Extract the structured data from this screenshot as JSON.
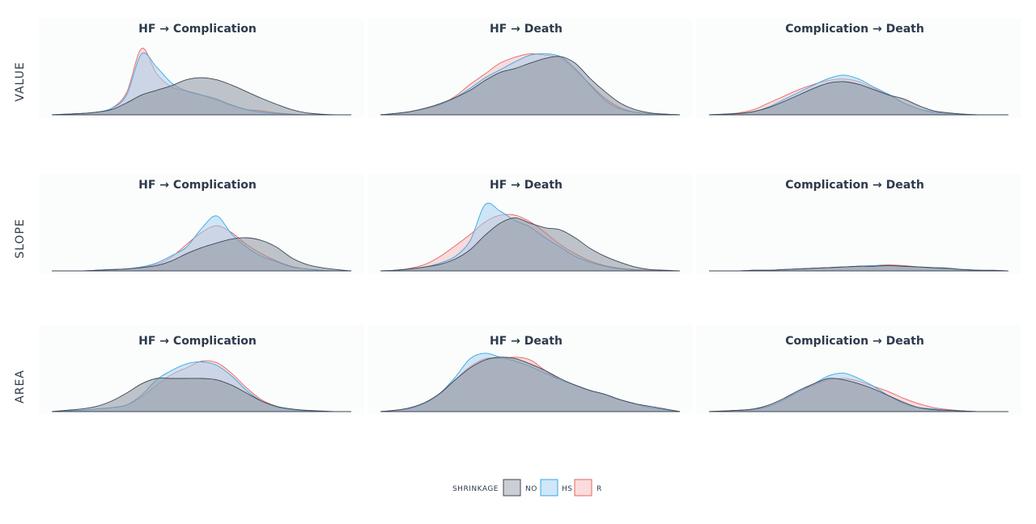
{
  "chart_data": {
    "type": "area",
    "subtype": "density-facet-grid",
    "rows": [
      "VALUE",
      "SLOPE",
      "AREA"
    ],
    "columns": [
      "HF → Complication",
      "HF → Death",
      "Complication → Death"
    ],
    "legend": {
      "title": "SHRINKAGE",
      "placement": "bottom-center",
      "entries": [
        {
          "key": "NO",
          "label": "NO",
          "fill": "#8c939f",
          "stroke": "#3d4656"
        },
        {
          "key": "HS",
          "label": "HS",
          "fill": "#9fd0f2",
          "stroke": "#3aa7e0"
        },
        {
          "key": "R",
          "label": "R",
          "fill": "#f7b9b9",
          "stroke": "#e46666"
        }
      ]
    },
    "grid": false,
    "x_axis_labels_shown": false,
    "y_axis_labels_shown": false,
    "xlim": [
      0,
      1
    ],
    "ylim": [
      0,
      1
    ],
    "x": [
      0,
      0.05,
      0.1,
      0.15,
      0.2,
      0.25,
      0.3,
      0.35,
      0.4,
      0.45,
      0.5,
      0.55,
      0.6,
      0.65,
      0.7,
      0.75,
      0.8,
      0.85,
      0.9,
      0.95,
      1
    ],
    "panels": [
      {
        "row": "VALUE",
        "column": "HF → Complication",
        "series": [
          {
            "name": "NO",
            "values": [
              0,
              0.01,
              0.02,
              0.04,
              0.08,
              0.18,
              0.3,
              0.37,
              0.44,
              0.53,
              0.56,
              0.53,
              0.45,
              0.35,
              0.25,
              0.16,
              0.08,
              0.03,
              0.01,
              0,
              0
            ]
          },
          {
            "name": "HS",
            "values": [
              0,
              0.01,
              0.02,
              0.04,
              0.1,
              0.3,
              0.92,
              0.72,
              0.48,
              0.36,
              0.3,
              0.24,
              0.15,
              0.08,
              0.04,
              0.02,
              0.01,
              0,
              0,
              0,
              0
            ]
          },
          {
            "name": "R",
            "values": [
              0,
              0.01,
              0.02,
              0.04,
              0.1,
              0.34,
              1.0,
              0.62,
              0.42,
              0.36,
              0.3,
              0.22,
              0.14,
              0.08,
              0.06,
              0.03,
              0.01,
              0,
              0,
              0,
              0
            ]
          }
        ]
      },
      {
        "row": "VALUE",
        "column": "HF → Death",
        "series": [
          {
            "name": "NO",
            "values": [
              0,
              0.02,
              0.05,
              0.1,
              0.17,
              0.26,
              0.37,
              0.52,
              0.64,
              0.7,
              0.78,
              0.85,
              0.88,
              0.78,
              0.55,
              0.35,
              0.18,
              0.08,
              0.03,
              0.01,
              0
            ]
          },
          {
            "name": "HS",
            "values": [
              0,
              0.02,
              0.05,
              0.1,
              0.16,
              0.26,
              0.4,
              0.56,
              0.68,
              0.8,
              0.9,
              0.92,
              0.88,
              0.7,
              0.45,
              0.22,
              0.09,
              0.04,
              0.02,
              0.01,
              0
            ]
          },
          {
            "name": "R",
            "values": [
              0,
              0.02,
              0.05,
              0.09,
              0.15,
              0.28,
              0.46,
              0.62,
              0.78,
              0.87,
              0.92,
              0.9,
              0.86,
              0.68,
              0.46,
              0.25,
              0.11,
              0.04,
              0.02,
              0.01,
              0
            ]
          }
        ]
      },
      {
        "row": "VALUE",
        "column": "Complication → Death",
        "series": [
          {
            "name": "NO",
            "values": [
              0,
              0.01,
              0.02,
              0.05,
              0.11,
              0.2,
              0.3,
              0.4,
              0.48,
              0.5,
              0.46,
              0.38,
              0.3,
              0.24,
              0.14,
              0.06,
              0.03,
              0.01,
              0,
              0,
              0
            ]
          },
          {
            "name": "HS",
            "values": [
              0,
              0.01,
              0.02,
              0.05,
              0.12,
              0.23,
              0.34,
              0.45,
              0.55,
              0.6,
              0.54,
              0.42,
              0.31,
              0.18,
              0.09,
              0.04,
              0.02,
              0.01,
              0,
              0,
              0
            ]
          },
          {
            "name": "R",
            "values": [
              0,
              0.01,
              0.03,
              0.08,
              0.18,
              0.28,
              0.38,
              0.46,
              0.52,
              0.54,
              0.5,
              0.4,
              0.3,
              0.18,
              0.09,
              0.04,
              0.02,
              0.01,
              0,
              0,
              0
            ]
          }
        ]
      },
      {
        "row": "SLOPE",
        "column": "HF → Complication",
        "series": [
          {
            "name": "NO",
            "values": [
              0,
              0,
              0,
              0.01,
              0.02,
              0.03,
              0.05,
              0.08,
              0.15,
              0.26,
              0.35,
              0.42,
              0.48,
              0.5,
              0.46,
              0.36,
              0.2,
              0.1,
              0.05,
              0.02,
              0
            ]
          },
          {
            "name": "HS",
            "values": [
              0,
              0,
              0,
              0.01,
              0.02,
              0.03,
              0.06,
              0.12,
              0.23,
              0.36,
              0.64,
              0.83,
              0.56,
              0.36,
              0.22,
              0.14,
              0.06,
              0.03,
              0.01,
              0,
              0
            ]
          },
          {
            "name": "R",
            "values": [
              0,
              0,
              0,
              0.01,
              0.02,
              0.03,
              0.06,
              0.1,
              0.21,
              0.4,
              0.58,
              0.68,
              0.58,
              0.4,
              0.26,
              0.15,
              0.07,
              0.03,
              0.01,
              0,
              0
            ]
          }
        ]
      },
      {
        "row": "SLOPE",
        "column": "HF → Death",
        "series": [
          {
            "name": "NO",
            "values": [
              0,
              0.01,
              0.03,
              0.06,
              0.1,
              0.18,
              0.32,
              0.54,
              0.72,
              0.8,
              0.72,
              0.65,
              0.62,
              0.5,
              0.34,
              0.22,
              0.13,
              0.06,
              0.02,
              0.01,
              0
            ]
          },
          {
            "name": "HS",
            "values": [
              0,
              0.01,
              0.03,
              0.06,
              0.12,
              0.22,
              0.46,
              1.0,
              0.9,
              0.76,
              0.66,
              0.5,
              0.36,
              0.22,
              0.13,
              0.07,
              0.03,
              0.01,
              0,
              0,
              0
            ]
          },
          {
            "name": "R",
            "values": [
              0,
              0.01,
              0.04,
              0.1,
              0.22,
              0.38,
              0.55,
              0.74,
              0.84,
              0.84,
              0.74,
              0.58,
              0.4,
              0.26,
              0.15,
              0.08,
              0.04,
              0.02,
              0.01,
              0,
              0
            ]
          }
        ]
      },
      {
        "row": "SLOPE",
        "column": "Complication → Death",
        "series": [
          {
            "name": "NO",
            "values": [
              0,
              0,
              0,
              0.01,
              0.01,
              0.02,
              0.03,
              0.04,
              0.05,
              0.06,
              0.07,
              0.07,
              0.08,
              0.07,
              0.06,
              0.05,
              0.04,
              0.02,
              0.01,
              0.01,
              0
            ]
          },
          {
            "name": "HS",
            "values": [
              0,
              0,
              0,
              0.01,
              0.01,
              0.02,
              0.03,
              0.04,
              0.05,
              0.06,
              0.07,
              0.08,
              0.08,
              0.07,
              0.06,
              0.04,
              0.03,
              0.02,
              0.01,
              0,
              0
            ]
          },
          {
            "name": "R",
            "values": [
              0,
              0,
              0,
              0.01,
              0.01,
              0.02,
              0.03,
              0.04,
              0.05,
              0.06,
              0.07,
              0.08,
              0.09,
              0.08,
              0.06,
              0.04,
              0.03,
              0.02,
              0.01,
              0,
              0
            ]
          }
        ]
      },
      {
        "row": "AREA",
        "column": "HF → Complication",
        "series": [
          {
            "name": "NO",
            "values": [
              0,
              0.02,
              0.04,
              0.08,
              0.16,
              0.28,
              0.42,
              0.5,
              0.5,
              0.5,
              0.5,
              0.48,
              0.4,
              0.28,
              0.16,
              0.08,
              0.04,
              0.02,
              0.01,
              0,
              0
            ]
          },
          {
            "name": "HS",
            "values": [
              0,
              0.01,
              0.02,
              0.04,
              0.06,
              0.1,
              0.25,
              0.48,
              0.62,
              0.72,
              0.75,
              0.7,
              0.54,
              0.32,
              0.16,
              0.07,
              0.03,
              0.01,
              0,
              0,
              0
            ]
          },
          {
            "name": "R",
            "values": [
              0,
              0.01,
              0.02,
              0.04,
              0.06,
              0.1,
              0.22,
              0.4,
              0.56,
              0.66,
              0.76,
              0.74,
              0.58,
              0.36,
              0.18,
              0.08,
              0.03,
              0.01,
              0,
              0,
              0
            ]
          }
        ]
      },
      {
        "row": "AREA",
        "column": "HF → Death",
        "series": [
          {
            "name": "NO",
            "values": [
              0,
              0.02,
              0.06,
              0.14,
              0.28,
              0.48,
              0.66,
              0.78,
              0.82,
              0.8,
              0.72,
              0.62,
              0.5,
              0.4,
              0.32,
              0.26,
              0.18,
              0.12,
              0.08,
              0.04,
              0
            ]
          },
          {
            "name": "HS",
            "values": [
              0,
              0.02,
              0.05,
              0.13,
              0.28,
              0.52,
              0.8,
              0.88,
              0.82,
              0.76,
              0.68,
              0.58,
              0.48,
              0.4,
              0.32,
              0.26,
              0.18,
              0.12,
              0.06,
              0.03,
              0
            ]
          },
          {
            "name": "R",
            "values": [
              0,
              0.02,
              0.05,
              0.13,
              0.27,
              0.48,
              0.68,
              0.8,
              0.8,
              0.82,
              0.78,
              0.62,
              0.48,
              0.4,
              0.32,
              0.26,
              0.18,
              0.12,
              0.06,
              0.03,
              0
            ]
          }
        ]
      },
      {
        "row": "AREA",
        "column": "Complication → Death",
        "series": [
          {
            "name": "NO",
            "values": [
              0,
              0.01,
              0.02,
              0.04,
              0.1,
              0.2,
              0.32,
              0.42,
              0.5,
              0.48,
              0.42,
              0.34,
              0.24,
              0.14,
              0.06,
              0.03,
              0.02,
              0.01,
              0,
              0,
              0
            ]
          },
          {
            "name": "HS",
            "values": [
              0,
              0.01,
              0.02,
              0.03,
              0.08,
              0.18,
              0.3,
              0.42,
              0.54,
              0.58,
              0.5,
              0.38,
              0.24,
              0.12,
              0.06,
              0.04,
              0.02,
              0.01,
              0,
              0,
              0
            ]
          },
          {
            "name": "R",
            "values": [
              0,
              0.01,
              0.02,
              0.04,
              0.08,
              0.18,
              0.3,
              0.4,
              0.48,
              0.5,
              0.46,
              0.38,
              0.3,
              0.2,
              0.12,
              0.06,
              0.03,
              0.01,
              0,
              0,
              0
            ]
          }
        ]
      }
    ]
  }
}
